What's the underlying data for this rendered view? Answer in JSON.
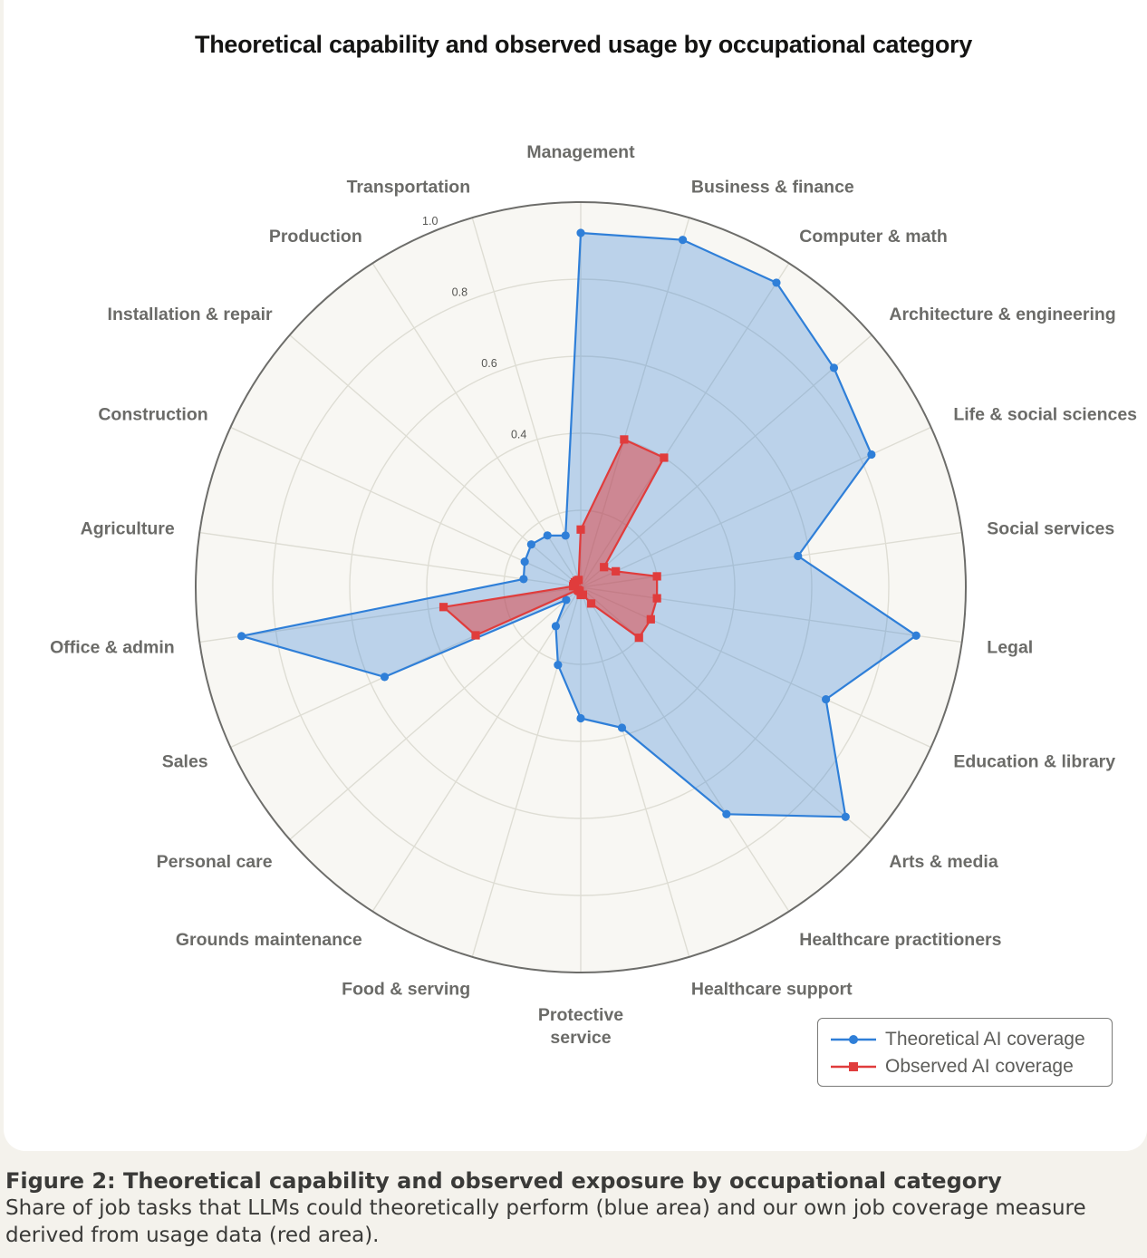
{
  "chart_data": {
    "type": "radar",
    "title": "Theoretical capability and observed usage by occupational category",
    "categories": [
      "Management",
      "Business & finance",
      "Computer & math",
      "Architecture & engineering",
      "Life & social sciences",
      "Social services",
      "Legal",
      "Education & library",
      "Arts & media",
      "Healthcare practitioners",
      "Healthcare support",
      "Protective service",
      "Food & serving",
      "Grounds maintenance",
      "Personal care",
      "Sales",
      "Office & admin",
      "Agriculture",
      "Construction",
      "Installation & repair",
      "Production",
      "Transportation"
    ],
    "series": [
      {
        "name": "Theoretical AI coverage",
        "color": "#2f7fd8",
        "values": [
          0.92,
          0.94,
          0.94,
          0.87,
          0.83,
          0.57,
          0.88,
          0.7,
          0.91,
          0.7,
          0.38,
          0.34,
          0.21,
          0.12,
          0.05,
          0.56,
          0.89,
          0.15,
          0.16,
          0.17,
          0.16,
          0.14
        ]
      },
      {
        "name": "Observed AI coverage",
        "color": "#e03c3c",
        "values": [
          0.15,
          0.4,
          0.4,
          0.08,
          0.1,
          0.2,
          0.2,
          0.2,
          0.2,
          0.05,
          0.02,
          0.02,
          0.01,
          0.01,
          0.01,
          0.3,
          0.36,
          0.02,
          0.02,
          0.02,
          0.02,
          0.02
        ]
      }
    ],
    "rlim": [
      0,
      1.0
    ],
    "radial_ticks": [
      0.2,
      0.4,
      0.6,
      0.8,
      1.0
    ],
    "radial_tick_labels": [
      "0.4",
      "0.6",
      "0.8",
      "1.0"
    ],
    "legend_position": "bottom-right",
    "grid": true
  },
  "legend": {
    "theoretical": "Theoretical AI coverage",
    "observed": "Observed AI coverage"
  },
  "caption": {
    "title": "Figure 2: Theoretical capability and observed exposure by occupational category",
    "text": "Share of job tasks that LLMs could theoretically perform (blue area) and our own job coverage measure derived from usage data (red area)."
  }
}
